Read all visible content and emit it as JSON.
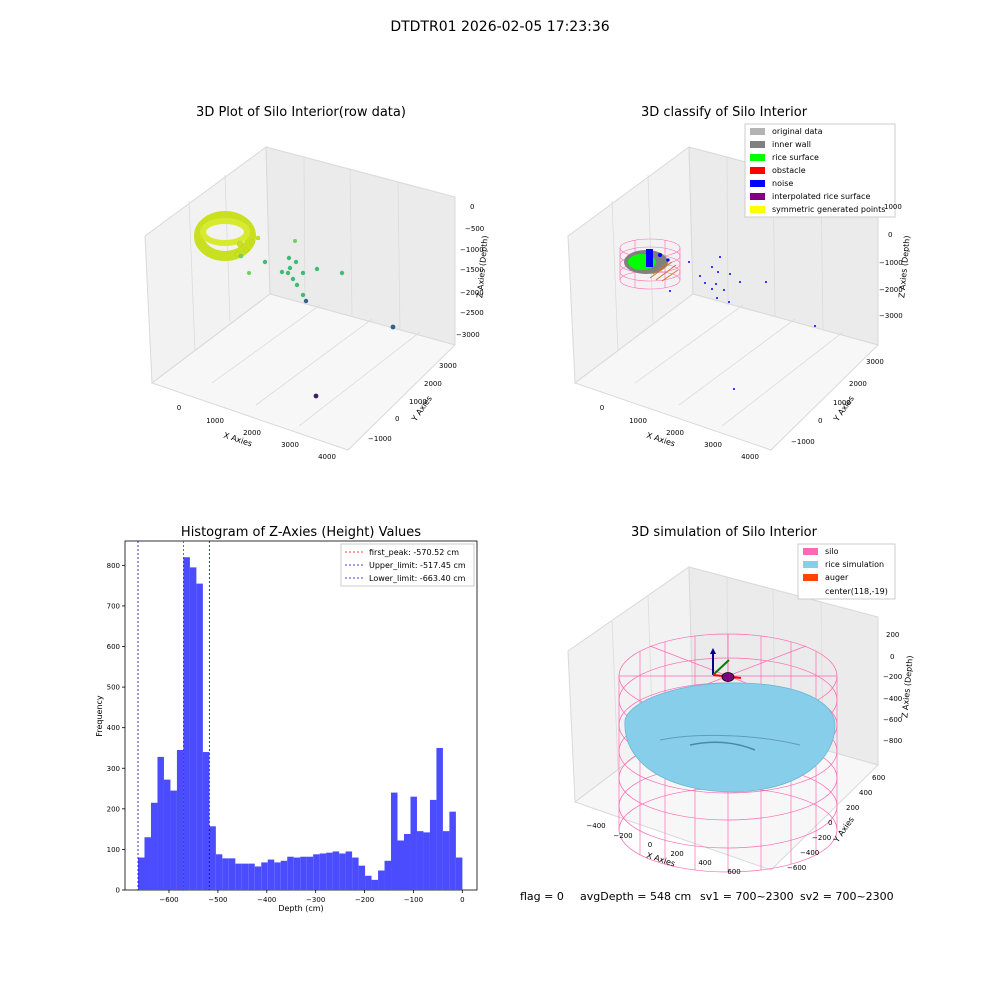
{
  "suptitle": "DTDTR01 2026-02-05 17:23:36",
  "colors": {
    "viridis_hi": "#c8e020",
    "viridis_mid": "#3fbc73",
    "viridis_lo": "#33638d",
    "hist_bar": "#4c4cff",
    "peak_line": "#ff0000",
    "limit_line": "#0000cc",
    "silo_pink": "#ff69b4",
    "rice_blue": "#87ceeb",
    "auger": "#ff4500",
    "original": "#b3b3b3",
    "inner_wall": "#808080",
    "rice_surface": "#00ff00",
    "obstacle": "#ff0000",
    "noise": "#0000ff",
    "interp": "#800080",
    "symmetric": "#ffff00"
  },
  "panel1": {
    "title": "3D Plot of Silo Interior(row data)",
    "xlabel": "X Axies",
    "ylabel": "Y Axies",
    "zlabel": "Z Axies (Depth)",
    "xticks": [
      "0",
      "1000",
      "2000",
      "3000",
      "4000"
    ],
    "yticks": [
      "−1000",
      "0",
      "1000",
      "2000",
      "3000"
    ],
    "zticks": [
      "0",
      "−500",
      "−1000",
      "−1500",
      "−2000",
      "−2500",
      "−3000"
    ]
  },
  "panel2": {
    "title": "3D classify of Silo Interior",
    "xlabel": "X Axies",
    "ylabel": "Y Axies",
    "zlabel": "Z Axies (Depth)",
    "xticks": [
      "0",
      "1000",
      "2000",
      "3000",
      "4000"
    ],
    "yticks": [
      "−1000",
      "0",
      "1000",
      "2000",
      "3000"
    ],
    "zticks": [
      "1000",
      "0",
      "−1000",
      "−2000",
      "−3000"
    ],
    "legend": [
      {
        "label": "original data",
        "color": "original"
      },
      {
        "label": "inner wall",
        "color": "inner_wall"
      },
      {
        "label": "rice surface",
        "color": "rice_surface"
      },
      {
        "label": "obstacle",
        "color": "obstacle"
      },
      {
        "label": "noise",
        "color": "noise"
      },
      {
        "label": "interpolated rice surface",
        "color": "interp"
      },
      {
        "label": "symmetric generated points",
        "color": "symmetric"
      }
    ]
  },
  "panel4": {
    "title": "3D simulation of Silo Interior",
    "xlabel": "X Axies",
    "ylabel": "Y Axies",
    "zlabel": "Z Axies (Depth)",
    "xticks": [
      "−400",
      "−200",
      "0",
      "200",
      "400",
      "600"
    ],
    "yticks": [
      "−600",
      "−400",
      "−200",
      "0",
      "200",
      "400",
      "600"
    ],
    "zticks": [
      "200",
      "0",
      "−200",
      "−400",
      "−600",
      "−800"
    ],
    "legend": [
      {
        "label": "silo",
        "color": "silo_pink"
      },
      {
        "label": "rice simulation",
        "color": "rice_blue"
      },
      {
        "label": "auger",
        "color": "auger"
      },
      {
        "label": "center(118,-19)",
        "color": ""
      }
    ]
  },
  "footer": {
    "flag": "flag = 0",
    "avg": "avgDepth = 548 cm",
    "sv1": "sv1 = 700~2300",
    "sv2": "sv2 = 700~2300"
  },
  "chart_data": [
    {
      "type": "bar",
      "title": "Histogram of Z-Axies (Height) Values",
      "xlabel": "Depth (cm)",
      "ylabel": "Frequency",
      "xlim": [
        -690,
        30
      ],
      "ylim": [
        0,
        860
      ],
      "xticks": [
        -600,
        -500,
        -400,
        -300,
        -200,
        -100,
        0
      ],
      "yticks": [
        0,
        100,
        200,
        300,
        400,
        500,
        600,
        700,
        800
      ],
      "bin_start": -663.4,
      "bin_width": 13.27,
      "values": [
        80,
        130,
        215,
        328,
        272,
        245,
        345,
        820,
        795,
        755,
        340,
        157,
        88,
        78,
        78,
        65,
        65,
        65,
        58,
        68,
        75,
        68,
        72,
        82,
        80,
        82,
        82,
        88,
        90,
        92,
        95,
        90,
        95,
        80,
        60,
        35,
        25,
        48,
        72,
        240,
        122,
        138,
        230,
        145,
        142,
        222,
        350,
        145,
        193,
        80
      ],
      "vlines": [
        {
          "label": "first_peak: -570.52 cm",
          "x": -570.52,
          "color": "peak_line"
        },
        {
          "label": "Upper_limit: -517.45 cm",
          "x": -517.45,
          "color": "limit_line"
        },
        {
          "label": "Lower_limit: -663.40 cm",
          "x": -663.4,
          "color": "limit_line"
        }
      ]
    }
  ]
}
